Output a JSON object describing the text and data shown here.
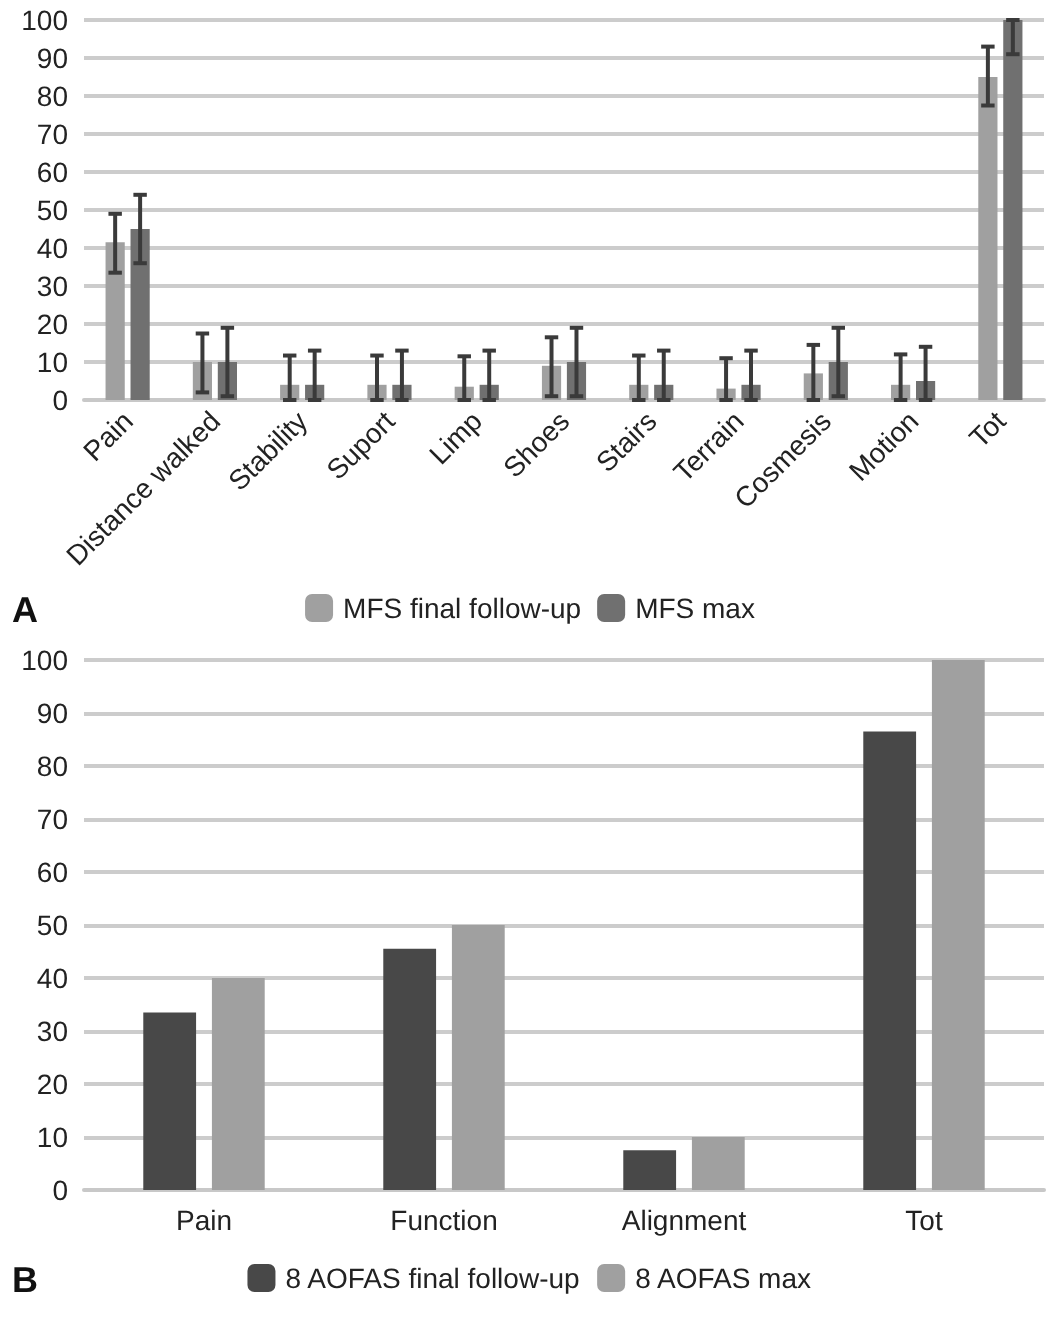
{
  "chart_data": [
    {
      "type": "bar",
      "categories": [
        "Pain",
        "Distance walked",
        "Stability",
        "Suport",
        "Limp",
        "Shoes",
        "Stairs",
        "Terrain",
        "Cosmesis",
        "Motion",
        "Tot"
      ],
      "series": [
        {
          "name": "MFS final follow-up",
          "color": "#a0a0a0",
          "values": [
            41.5,
            10,
            4,
            4,
            3.5,
            9,
            4,
            3,
            7,
            4,
            85
          ],
          "errors": [
            [
              33.5,
              49
            ],
            [
              2,
              17.5
            ],
            [
              0,
              11.7
            ],
            [
              0,
              11.7
            ],
            [
              0,
              11.5
            ],
            [
              1,
              16.5
            ],
            [
              0,
              11.7
            ],
            [
              0,
              11
            ],
            [
              0,
              14.5
            ],
            [
              0,
              12
            ],
            [
              77.5,
              93
            ]
          ]
        },
        {
          "name": "MFS max",
          "color": "#707070",
          "values": [
            45,
            10,
            4,
            4,
            4,
            10,
            4,
            4,
            10,
            5,
            100
          ],
          "errors": [
            [
              36,
              54
            ],
            [
              1,
              19
            ],
            [
              0,
              13
            ],
            [
              0,
              13
            ],
            [
              0,
              13
            ],
            [
              1,
              19
            ],
            [
              0,
              13
            ],
            [
              0,
              13
            ],
            [
              1,
              19
            ],
            [
              0,
              14
            ],
            [
              91,
              100
            ]
          ]
        }
      ],
      "ylim": [
        0,
        100
      ],
      "yticks": [
        0,
        10,
        20,
        30,
        40,
        50,
        60,
        70,
        80,
        90,
        100
      ],
      "grid": "y",
      "legend": "bottom",
      "annotations": [
        "A"
      ]
    },
    {
      "type": "bar",
      "categories": [
        "Pain",
        "Function",
        "Alignment",
        "Tot"
      ],
      "series": [
        {
          "name": "8 AOFAS final follow-up",
          "color": "#484848",
          "values": [
            33.5,
            45.5,
            7.5,
            86.5
          ]
        },
        {
          "name": "8 AOFAS max",
          "color": "#a0a0a0",
          "values": [
            40,
            50,
            10,
            100
          ]
        }
      ],
      "ylim": [
        0,
        100
      ],
      "yticks": [
        0,
        10,
        20,
        30,
        40,
        50,
        60,
        70,
        80,
        90,
        100
      ],
      "grid": "y",
      "legend": "bottom",
      "annotations": [
        "B"
      ]
    }
  ]
}
